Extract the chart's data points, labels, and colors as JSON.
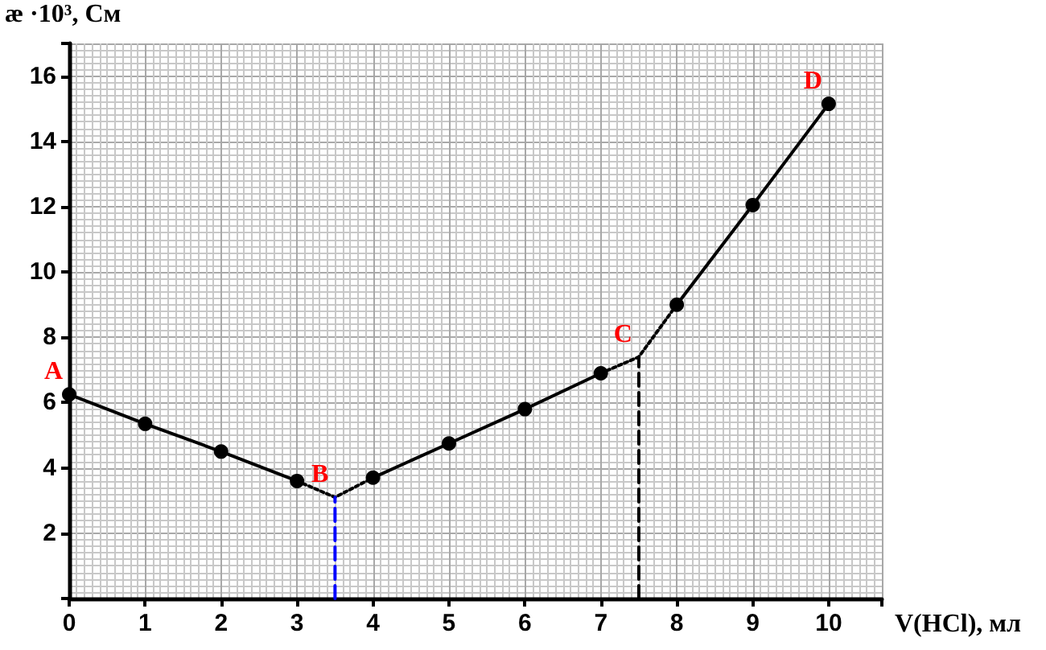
{
  "chart_data": {
    "type": "line",
    "xlabel": "V(HCl), мл",
    "ylabel": "æ ·10³, См",
    "xlim": [
      0,
      10.7
    ],
    "ylim": [
      0,
      17
    ],
    "xticks": [
      0,
      1,
      2,
      3,
      4,
      5,
      6,
      7,
      8,
      9,
      10
    ],
    "yticks": [
      {
        "value": 0,
        "label": null
      },
      2,
      4,
      6,
      8,
      10,
      12,
      14,
      16
    ],
    "grid": true,
    "series": [
      {
        "color": "#000000",
        "marker": "circle",
        "line_style": "solid",
        "x": [
          0,
          1,
          2,
          3
        ],
        "values": [
          6.25,
          5.35,
          4.5,
          3.6
        ]
      },
      {
        "color": "#000000",
        "marker": "none",
        "line_style": "dotted",
        "x": [
          3,
          3.5,
          4
        ],
        "values": [
          3.6,
          3.1,
          3.7
        ]
      },
      {
        "color": "#000000",
        "marker": "circle",
        "line_style": "solid",
        "x": [
          4,
          5,
          6,
          7
        ],
        "values": [
          3.7,
          4.75,
          5.8,
          6.9
        ]
      },
      {
        "color": "#000000",
        "marker": "none",
        "line_style": "dotted",
        "x": [
          7,
          7.5,
          8
        ],
        "values": [
          6.9,
          7.4,
          9.0
        ]
      },
      {
        "color": "#000000",
        "marker": "circle",
        "line_style": "solid",
        "x": [
          8,
          9,
          10
        ],
        "values": [
          9.0,
          12.05,
          15.15
        ]
      },
      {
        "color": "#0000ff",
        "marker": "none",
        "line_style": "dashed",
        "x": [
          3.5,
          3.5
        ],
        "values": [
          0,
          3.1
        ]
      },
      {
        "color": "#000000",
        "marker": "none",
        "line_style": "dashed",
        "x": [
          7.5,
          7.5
        ],
        "values": [
          0,
          7.4
        ]
      }
    ],
    "annotations": [
      {
        "text": "A",
        "x": 0,
        "y": 6.25
      },
      {
        "text": "B",
        "x": 3.5,
        "y": 3.1
      },
      {
        "text": "C",
        "x": 7.5,
        "y": 7.4
      },
      {
        "text": "D",
        "x": 10,
        "y": 15.15
      }
    ]
  }
}
